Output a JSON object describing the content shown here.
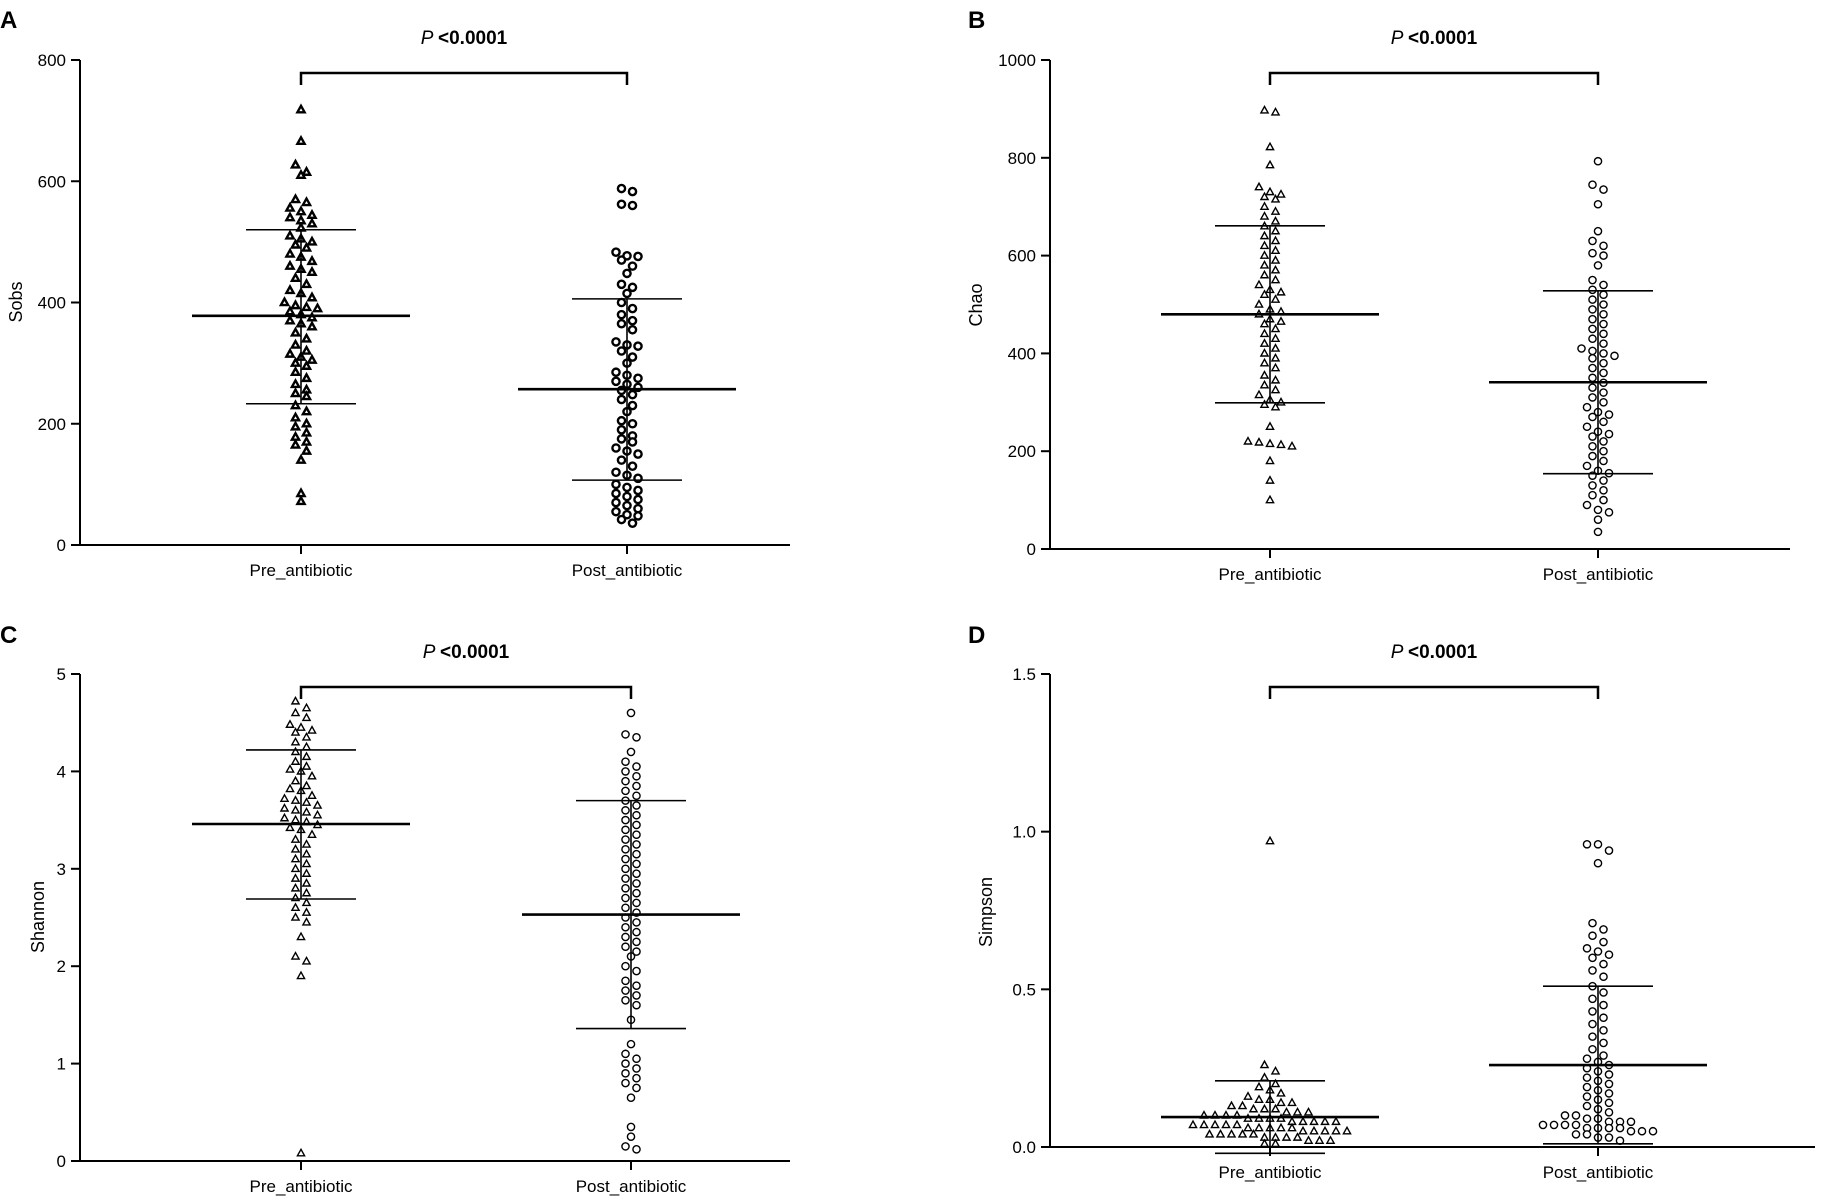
{
  "chart_data": [
    {
      "type": "scatter",
      "panel": "A",
      "ylabel": "Sobs",
      "ylim": [
        0,
        800
      ],
      "yticks": [
        "0",
        "200",
        "400",
        "600",
        "800"
      ],
      "categories": [
        "Pre_antibiotic",
        "Post_antibiotic"
      ],
      "p_value": {
        "prefix": "P",
        "text": "<0.0001"
      },
      "marker_weight": "bold",
      "reference_line": null,
      "series": [
        {
          "name": "Pre_antibiotic",
          "marker": "triangle",
          "mean": 378,
          "sd_low": 233,
          "sd_high": 520,
          "values": [
            718,
            666,
            627,
            615,
            610,
            570,
            565,
            556,
            550,
            544,
            540,
            535,
            530,
            523,
            510,
            505,
            500,
            495,
            490,
            480,
            475,
            468,
            460,
            455,
            450,
            440,
            430,
            420,
            415,
            408,
            400,
            395,
            392,
            390,
            385,
            380,
            375,
            370,
            365,
            360,
            350,
            340,
            330,
            320,
            315,
            310,
            305,
            300,
            295,
            285,
            275,
            265,
            256,
            250,
            245,
            230,
            220,
            210,
            200,
            195,
            185,
            178,
            170,
            165,
            155,
            140,
            85,
            72
          ]
        },
        {
          "name": "Post_antibiotic",
          "marker": "circle",
          "mean": 257,
          "sd_low": 107,
          "sd_high": 406,
          "values": [
            588,
            583,
            562,
            560,
            483,
            477,
            476,
            470,
            460,
            448,
            430,
            425,
            415,
            400,
            390,
            380,
            370,
            365,
            355,
            335,
            330,
            328,
            320,
            310,
            300,
            285,
            280,
            275,
            270,
            265,
            260,
            255,
            248,
            240,
            230,
            220,
            205,
            200,
            190,
            180,
            175,
            170,
            160,
            155,
            150,
            140,
            130,
            120,
            115,
            110,
            100,
            95,
            90,
            85,
            80,
            75,
            70,
            65,
            60,
            55,
            50,
            48,
            42,
            36
          ]
        }
      ]
    },
    {
      "type": "scatter",
      "panel": "B",
      "ylabel": "Chao",
      "ylim": [
        0,
        1000
      ],
      "yticks": [
        "0",
        "200",
        "400",
        "600",
        "800",
        "1000"
      ],
      "categories": [
        "Pre_antibiotic",
        "Post_antibiotic"
      ],
      "p_value": {
        "prefix": "P",
        "text": "<0.0001"
      },
      "marker_weight": "normal",
      "reference_line": null,
      "series": [
        {
          "name": "Pre_antibiotic",
          "marker": "triangle",
          "mean": 480,
          "sd_low": 299,
          "sd_high": 661,
          "values": [
            897,
            893,
            822,
            785,
            740,
            730,
            725,
            720,
            715,
            700,
            690,
            680,
            670,
            660,
            650,
            640,
            630,
            620,
            610,
            600,
            590,
            580,
            570,
            560,
            550,
            540,
            530,
            525,
            520,
            510,
            500,
            490,
            485,
            480,
            470,
            465,
            460,
            450,
            440,
            430,
            420,
            410,
            400,
            390,
            380,
            370,
            355,
            345,
            335,
            325,
            315,
            305,
            300,
            295,
            290,
            250,
            220,
            218,
            215,
            213,
            210,
            180,
            140,
            100
          ]
        },
        {
          "name": "Post_antibiotic",
          "marker": "circle",
          "mean": 341,
          "sd_low": 154,
          "sd_high": 528,
          "values": [
            793,
            745,
            735,
            705,
            650,
            630,
            620,
            605,
            600,
            580,
            550,
            540,
            530,
            520,
            510,
            500,
            490,
            480,
            470,
            460,
            450,
            440,
            430,
            420,
            410,
            405,
            400,
            395,
            390,
            380,
            370,
            360,
            350,
            340,
            330,
            320,
            310,
            300,
            290,
            280,
            275,
            270,
            260,
            250,
            240,
            235,
            230,
            220,
            210,
            200,
            190,
            180,
            170,
            160,
            155,
            150,
            140,
            130,
            120,
            110,
            100,
            90,
            80,
            75,
            60,
            35
          ]
        }
      ]
    },
    {
      "type": "scatter",
      "panel": "C",
      "ylabel": "Shannon",
      "ylim": [
        0,
        5
      ],
      "yticks": [
        "0",
        "1",
        "2",
        "3",
        "4",
        "5"
      ],
      "categories": [
        "Pre_antibiotic",
        "Post_antibiotic"
      ],
      "p_value": {
        "prefix": "P",
        "text": "<0.0001"
      },
      "marker_weight": "normal",
      "reference_line": null,
      "series": [
        {
          "name": "Pre_antibiotic",
          "marker": "triangle",
          "mean": 3.46,
          "sd_low": 2.69,
          "sd_high": 4.22,
          "values": [
            4.72,
            4.65,
            4.6,
            4.55,
            4.48,
            4.45,
            4.42,
            4.4,
            4.35,
            4.3,
            4.25,
            4.2,
            4.15,
            4.1,
            4.05,
            4.02,
            4.0,
            3.95,
            3.9,
            3.85,
            3.82,
            3.8,
            3.75,
            3.72,
            3.7,
            3.68,
            3.65,
            3.62,
            3.6,
            3.58,
            3.55,
            3.52,
            3.5,
            3.48,
            3.45,
            3.42,
            3.4,
            3.35,
            3.3,
            3.25,
            3.2,
            3.15,
            3.1,
            3.05,
            3.0,
            2.95,
            2.9,
            2.85,
            2.8,
            2.75,
            2.7,
            2.65,
            2.6,
            2.55,
            2.5,
            2.45,
            2.3,
            2.1,
            2.05,
            1.9,
            0.08
          ]
        },
        {
          "name": "Post_antibiotic",
          "marker": "circle",
          "mean": 2.53,
          "sd_low": 1.36,
          "sd_high": 3.7,
          "values": [
            4.6,
            4.38,
            4.35,
            4.2,
            4.1,
            4.05,
            4.0,
            3.95,
            3.9,
            3.85,
            3.8,
            3.75,
            3.7,
            3.65,
            3.6,
            3.55,
            3.5,
            3.45,
            3.4,
            3.35,
            3.3,
            3.25,
            3.2,
            3.15,
            3.1,
            3.05,
            3.0,
            2.95,
            2.9,
            2.85,
            2.8,
            2.75,
            2.7,
            2.65,
            2.6,
            2.55,
            2.5,
            2.45,
            2.4,
            2.35,
            2.3,
            2.25,
            2.2,
            2.15,
            2.1,
            2.0,
            1.95,
            1.85,
            1.8,
            1.75,
            1.7,
            1.65,
            1.6,
            1.45,
            1.2,
            1.1,
            1.05,
            1.0,
            0.95,
            0.9,
            0.85,
            0.8,
            0.75,
            0.65,
            0.35,
            0.25,
            0.15,
            0.12
          ]
        }
      ]
    },
    {
      "type": "scatter",
      "panel": "D",
      "ylabel": "Simpson",
      "ylim": [
        0,
        1.5
      ],
      "yticks": [
        "0.0",
        "0.5",
        "1.0",
        "1.5"
      ],
      "categories": [
        "Pre_antibiotic",
        "Post_antibiotic"
      ],
      "p_value": {
        "prefix": "P",
        "text": "<0.0001"
      },
      "marker_weight": "normal",
      "reference_line": 0,
      "series": [
        {
          "name": "Pre_antibiotic",
          "marker": "triangle",
          "mean": 0.095,
          "sd_low": -0.02,
          "sd_high": 0.21,
          "values": [
            0.97,
            0.26,
            0.24,
            0.22,
            0.2,
            0.19,
            0.18,
            0.17,
            0.16,
            0.15,
            0.15,
            0.14,
            0.14,
            0.13,
            0.13,
            0.12,
            0.12,
            0.12,
            0.11,
            0.11,
            0.11,
            0.1,
            0.1,
            0.1,
            0.1,
            0.09,
            0.09,
            0.09,
            0.09,
            0.08,
            0.08,
            0.08,
            0.08,
            0.08,
            0.07,
            0.07,
            0.07,
            0.07,
            0.07,
            0.06,
            0.06,
            0.06,
            0.06,
            0.06,
            0.05,
            0.05,
            0.05,
            0.05,
            0.05,
            0.04,
            0.04,
            0.04,
            0.04,
            0.04,
            0.03,
            0.03,
            0.03,
            0.03,
            0.02,
            0.02,
            0.02,
            0.01,
            0.01
          ]
        },
        {
          "name": "Post_antibiotic",
          "marker": "circle",
          "mean": 0.26,
          "sd_low": 0.01,
          "sd_high": 0.51,
          "values": [
            0.96,
            0.96,
            0.94,
            0.9,
            0.71,
            0.69,
            0.67,
            0.65,
            0.63,
            0.62,
            0.61,
            0.6,
            0.58,
            0.56,
            0.54,
            0.51,
            0.49,
            0.47,
            0.45,
            0.43,
            0.41,
            0.39,
            0.37,
            0.35,
            0.33,
            0.31,
            0.29,
            0.28,
            0.27,
            0.26,
            0.25,
            0.24,
            0.23,
            0.22,
            0.21,
            0.2,
            0.19,
            0.18,
            0.17,
            0.16,
            0.15,
            0.14,
            0.13,
            0.12,
            0.11,
            0.1,
            0.1,
            0.09,
            0.09,
            0.08,
            0.08,
            0.08,
            0.07,
            0.07,
            0.07,
            0.07,
            0.06,
            0.06,
            0.06,
            0.06,
            0.05,
            0.05,
            0.05,
            0.04,
            0.04,
            0.03,
            0.03,
            0.02
          ]
        }
      ]
    }
  ]
}
